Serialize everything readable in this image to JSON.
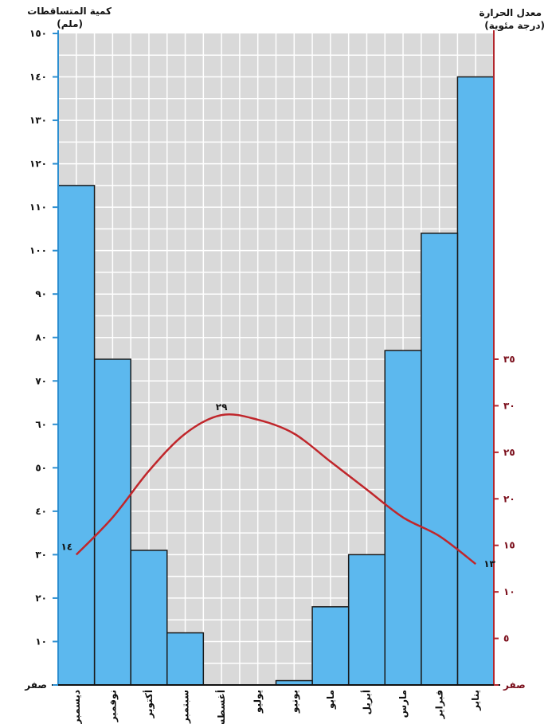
{
  "chart_data": {
    "type": "bar",
    "categories": [
      "يناير",
      "فبراير",
      "مارس",
      "أبريل",
      "مايو",
      "يونيو",
      "يوليو",
      "أغسطس",
      "سبتمبر",
      "أكتوبر",
      "نوفمبر",
      "ديسمبر"
    ],
    "series": [
      {
        "values": [
          140,
          104,
          77,
          30,
          18,
          1,
          0,
          0,
          12,
          31,
          75,
          115
        ]
      },
      {
        "values": [
          13,
          16,
          18,
          21,
          24,
          27,
          28.5,
          29,
          27,
          23,
          18,
          14
        ]
      }
    ],
    "left_axis": {
      "title_line1": "كمية المتساقطات",
      "title_line2": "(ملم)",
      "ylim": [
        0,
        150
      ],
      "ticks": [
        {
          "value": 0,
          "label": "صفر"
        },
        {
          "value": 10,
          "label": "١٠"
        },
        {
          "value": 20,
          "label": "٢٠"
        },
        {
          "value": 30,
          "label": "٣٠"
        },
        {
          "value": 40,
          "label": "٤٠"
        },
        {
          "value": 50,
          "label": "٥٠"
        },
        {
          "value": 60,
          "label": "٦٠"
        },
        {
          "value": 70,
          "label": "٧٠"
        },
        {
          "value": 80,
          "label": "٨٠"
        },
        {
          "value": 90,
          "label": "٩٠"
        },
        {
          "value": 100,
          "label": "١٠٠"
        },
        {
          "value": 110,
          "label": "١١٠"
        },
        {
          "value": 120,
          "label": "١٢٠"
        },
        {
          "value": 130,
          "label": "١٣٠"
        },
        {
          "value": 140,
          "label": "١٤٠"
        },
        {
          "value": 150,
          "label": "١٥٠"
        }
      ]
    },
    "right_axis": {
      "title_line1": "معدل الحرارة",
      "title_line2": "(درجة مئوية)",
      "ylim": [
        0,
        70
      ],
      "ticks": [
        {
          "value": 0,
          "label": "صفر"
        },
        {
          "value": 5,
          "label": "٥"
        },
        {
          "value": 10,
          "label": "١٠"
        },
        {
          "value": 15,
          "label": "١٥"
        },
        {
          "value": 20,
          "label": "٢٠"
        },
        {
          "value": 25,
          "label": "٢٥"
        },
        {
          "value": 30,
          "label": "٣٠"
        },
        {
          "value": 35,
          "label": "٣٥"
        }
      ]
    },
    "temp_labels": [
      {
        "month_index": 0,
        "value": 13,
        "label": "١٣"
      },
      {
        "month_index": 7,
        "value": 29,
        "label": "٢٩"
      },
      {
        "month_index": 11,
        "value": 14,
        "label": "١٤"
      }
    ],
    "grid": true,
    "colors": {
      "bar_fill": "#5cb8ee",
      "bar_stroke": "#1a1a1a",
      "temp_line": "#c0262b",
      "grid_bg": "#d9d9d9",
      "grid_line": "#ffffff",
      "left_axis": "#2d8fd1",
      "right_axis": "#b3272e"
    }
  }
}
